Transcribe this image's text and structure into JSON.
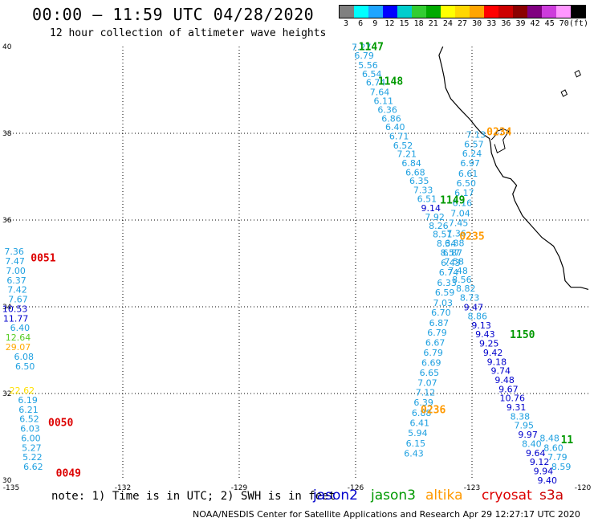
{
  "header": {
    "title": "00:00 – 11:59 UTC 04/28/2020",
    "subtitle": "12 hour collection of altimeter wave heights"
  },
  "scale": {
    "colors": [
      "#808080",
      "#00ffff",
      "#1ea5ff",
      "#0000ff",
      "#00cdcd",
      "#32cd32",
      "#00aa00",
      "#ffff00",
      "#ffd700",
      "#ffa500",
      "#ff0000",
      "#cd0000",
      "#8b0000",
      "#800080",
      "#cd3cdc",
      "#ff96ff",
      "#000000"
    ],
    "labels": [
      "3",
      "6",
      "9",
      "12",
      "15",
      "18",
      "21",
      "24",
      "27",
      "30",
      "33",
      "36",
      "39",
      "42",
      "45",
      "70",
      "(ft)"
    ]
  },
  "axes": {
    "lon_ticks": [
      "-135",
      "-132",
      "-129",
      "-126",
      "-123",
      "-120"
    ],
    "lat_ticks": [
      "40",
      "38",
      "36",
      "34",
      "32",
      "30"
    ],
    "lon_range": [
      -135,
      -120
    ],
    "lat_range": [
      30,
      40
    ]
  },
  "colors": {
    "jason2": "#0000cc",
    "jason3": "#009900",
    "altika": "#ff9900",
    "cryosat": "#dd0000",
    "s3a": "#cc0000"
  },
  "passes": [
    {
      "label": "1147",
      "color": "#009900",
      "lon": -125.6,
      "lat": 39.92
    },
    {
      "label": "1148",
      "color": "#009900",
      "lon": -125.1,
      "lat": 39.12
    },
    {
      "label": "0234",
      "color": "#ff9900",
      "lon": -122.3,
      "lat": 37.95
    },
    {
      "label": "1149",
      "color": "#009900",
      "lon": -123.5,
      "lat": 36.38
    },
    {
      "label": "0235",
      "color": "#ff9900",
      "lon": -123.0,
      "lat": 35.55
    },
    {
      "label": "0051",
      "color": "#dd0000",
      "lon": -134.05,
      "lat": 35.05
    },
    {
      "label": "1150",
      "color": "#009900",
      "lon": -121.7,
      "lat": 33.28
    },
    {
      "label": "0236",
      "color": "#ff9900",
      "lon": -124.0,
      "lat": 31.55
    },
    {
      "label": "0050",
      "color": "#dd0000",
      "lon": -133.6,
      "lat": 31.25
    },
    {
      "label": "0049",
      "color": "#dd0000",
      "lon": -133.4,
      "lat": 30.08
    },
    {
      "label": "11",
      "color": "#009900",
      "lon": -120.55,
      "lat": 30.85
    }
  ],
  "tracks": [
    {
      "name": "cryosat-west",
      "points": [
        {
          "lon": -134.8,
          "lat": 35.2,
          "v": "7.36",
          "c": "#1fa0e0"
        },
        {
          "lon": -134.78,
          "lat": 34.98,
          "v": "7.47",
          "c": "#1fa0e0"
        },
        {
          "lon": -134.76,
          "lat": 34.76,
          "v": "7.00",
          "c": "#1fa0e0"
        },
        {
          "lon": -134.74,
          "lat": 34.54,
          "v": "6.37",
          "c": "#1fa0e0"
        },
        {
          "lon": -134.72,
          "lat": 34.32,
          "v": "7.42",
          "c": "#1fa0e0"
        },
        {
          "lon": -134.7,
          "lat": 34.1,
          "v": "7.67",
          "c": "#1fa0e0"
        },
        {
          "lon": -134.78,
          "lat": 33.88,
          "v": "10.53",
          "c": "#0000cc"
        },
        {
          "lon": -134.76,
          "lat": 33.66,
          "v": "11.77",
          "c": "#0000cc"
        },
        {
          "lon": -134.65,
          "lat": 33.44,
          "v": "6.40",
          "c": "#1fa0e0"
        },
        {
          "lon": -134.7,
          "lat": 33.22,
          "v": "12.64",
          "c": "#55cc22"
        },
        {
          "lon": -134.7,
          "lat": 33.0,
          "v": "29.07",
          "c": "#ffaa00"
        },
        {
          "lon": -134.55,
          "lat": 32.78,
          "v": "6.08",
          "c": "#1fa0e0"
        },
        {
          "lon": -134.52,
          "lat": 32.56,
          "v": "6.50",
          "c": "#1fa0e0"
        },
        {
          "lon": -134.6,
          "lat": 32.0,
          "v": "22.62",
          "c": "#ffe000"
        },
        {
          "lon": -134.45,
          "lat": 31.78,
          "v": "6.19",
          "c": "#1fa0e0"
        },
        {
          "lon": -134.43,
          "lat": 31.56,
          "v": "6.21",
          "c": "#1fa0e0"
        },
        {
          "lon": -134.41,
          "lat": 31.34,
          "v": "6.52",
          "c": "#1fa0e0"
        },
        {
          "lon": -134.39,
          "lat": 31.12,
          "v": "6.03",
          "c": "#1fa0e0"
        },
        {
          "lon": -134.37,
          "lat": 30.9,
          "v": "6.00",
          "c": "#1fa0e0"
        },
        {
          "lon": -134.35,
          "lat": 30.68,
          "v": "5.27",
          "c": "#1fa0e0"
        },
        {
          "lon": -134.33,
          "lat": 30.46,
          "v": "5.22",
          "c": "#1fa0e0"
        },
        {
          "lon": -134.31,
          "lat": 30.24,
          "v": "6.62",
          "c": "#1fa0e0"
        }
      ]
    },
    {
      "name": "jason3-a",
      "points": [
        {
          "lon": -125.85,
          "lat": 39.92,
          "v": "7.27",
          "c": "#1fa0e0"
        },
        {
          "lon": -125.78,
          "lat": 39.72,
          "v": "6.79",
          "c": "#1fa0e0"
        },
        {
          "lon": -125.68,
          "lat": 39.5,
          "v": "5.56",
          "c": "#1fa0e0"
        },
        {
          "lon": -125.58,
          "lat": 39.3,
          "v": "6.54",
          "c": "#1fa0e0"
        },
        {
          "lon": -125.48,
          "lat": 39.1,
          "v": "6.74",
          "c": "#1fa0e0"
        },
        {
          "lon": -125.38,
          "lat": 38.88,
          "v": "7.64",
          "c": "#1fa0e0"
        },
        {
          "lon": -125.28,
          "lat": 38.68,
          "v": "6.11",
          "c": "#1fa0e0"
        },
        {
          "lon": -125.18,
          "lat": 38.47,
          "v": "6.36",
          "c": "#1fa0e0"
        },
        {
          "lon": -125.08,
          "lat": 38.27,
          "v": "6.86",
          "c": "#1fa0e0"
        },
        {
          "lon": -124.98,
          "lat": 38.07,
          "v": "6.40",
          "c": "#1fa0e0"
        },
        {
          "lon": -124.88,
          "lat": 37.86,
          "v": "6.71",
          "c": "#1fa0e0"
        },
        {
          "lon": -124.78,
          "lat": 37.65,
          "v": "6.52",
          "c": "#1fa0e0"
        },
        {
          "lon": -124.68,
          "lat": 37.45,
          "v": "7.21",
          "c": "#1fa0e0"
        },
        {
          "lon": -124.56,
          "lat": 37.24,
          "v": "6.84",
          "c": "#1fa0e0"
        },
        {
          "lon": -124.46,
          "lat": 37.03,
          "v": "6.68",
          "c": "#1fa0e0"
        },
        {
          "lon": -124.36,
          "lat": 36.83,
          "v": "6.35",
          "c": "#1fa0e0"
        },
        {
          "lon": -124.26,
          "lat": 36.62,
          "v": "7.33",
          "c": "#1fa0e0"
        },
        {
          "lon": -124.16,
          "lat": 36.42,
          "v": "6.51",
          "c": "#1fa0e0"
        },
        {
          "lon": -124.06,
          "lat": 36.2,
          "v": "9.14",
          "c": "#0000cc"
        },
        {
          "lon": -123.96,
          "lat": 36.0,
          "v": "7.92",
          "c": "#1fa0e0"
        },
        {
          "lon": -123.86,
          "lat": 35.8,
          "v": "8.26",
          "c": "#1fa0e0"
        },
        {
          "lon": -123.76,
          "lat": 35.6,
          "v": "8.51",
          "c": "#1fa0e0"
        },
        {
          "lon": -123.66,
          "lat": 35.39,
          "v": "8.34",
          "c": "#1fa0e0"
        },
        {
          "lon": -123.56,
          "lat": 35.18,
          "v": "8.57",
          "c": "#1fa0e0"
        },
        {
          "lon": -123.46,
          "lat": 34.97,
          "v": "7.58",
          "c": "#1fa0e0"
        },
        {
          "lon": -123.36,
          "lat": 34.76,
          "v": "7.48",
          "c": "#1fa0e0"
        },
        {
          "lon": -123.26,
          "lat": 34.56,
          "v": "8.56",
          "c": "#1fa0e0"
        },
        {
          "lon": -123.16,
          "lat": 34.35,
          "v": "8.82",
          "c": "#1fa0e0"
        },
        {
          "lon": -123.06,
          "lat": 34.14,
          "v": "8.73",
          "c": "#1fa0e0"
        },
        {
          "lon": -122.96,
          "lat": 33.92,
          "v": "9.47",
          "c": "#0000cc"
        },
        {
          "lon": -122.86,
          "lat": 33.71,
          "v": "8.86",
          "c": "#1fa0e0"
        },
        {
          "lon": -122.76,
          "lat": 33.5,
          "v": "9.13",
          "c": "#0000cc"
        },
        {
          "lon": -122.66,
          "lat": 33.3,
          "v": "9.43",
          "c": "#0000cc"
        },
        {
          "lon": -122.56,
          "lat": 33.08,
          "v": "9.25",
          "c": "#0000cc"
        },
        {
          "lon": -122.46,
          "lat": 32.87,
          "v": "9.42",
          "c": "#0000cc"
        },
        {
          "lon": -122.36,
          "lat": 32.66,
          "v": "9.18",
          "c": "#0000cc"
        },
        {
          "lon": -122.26,
          "lat": 32.45,
          "v": "9.74",
          "c": "#0000cc"
        },
        {
          "lon": -122.16,
          "lat": 32.24,
          "v": "9.48",
          "c": "#0000cc"
        },
        {
          "lon": -122.06,
          "lat": 32.03,
          "v": "9.67",
          "c": "#0000cc"
        },
        {
          "lon": -121.96,
          "lat": 31.82,
          "v": "10.76",
          "c": "#0000cc"
        },
        {
          "lon": -121.86,
          "lat": 31.61,
          "v": "9.31",
          "c": "#0000cc"
        },
        {
          "lon": -121.76,
          "lat": 31.4,
          "v": "8.38",
          "c": "#1fa0e0"
        },
        {
          "lon": -121.66,
          "lat": 31.19,
          "v": "7.95",
          "c": "#1fa0e0"
        },
        {
          "lon": -121.56,
          "lat": 30.98,
          "v": "9.97",
          "c": "#0000cc"
        },
        {
          "lon": -121.46,
          "lat": 30.77,
          "v": "8.40",
          "c": "#1fa0e0"
        },
        {
          "lon": -121.36,
          "lat": 30.56,
          "v": "9.64",
          "c": "#0000cc"
        },
        {
          "lon": -121.26,
          "lat": 30.35,
          "v": "9.12",
          "c": "#0000cc"
        },
        {
          "lon": -121.16,
          "lat": 30.14,
          "v": "9.94",
          "c": "#0000cc"
        },
        {
          "lon": -121.06,
          "lat": 29.93,
          "v": "9.40",
          "c": "#0000cc"
        }
      ]
    },
    {
      "name": "altika-a",
      "points": [
        {
          "lon": -122.9,
          "lat": 37.9,
          "v": "7.13",
          "c": "#1fa0e0"
        },
        {
          "lon": -122.95,
          "lat": 37.68,
          "v": "6.57",
          "c": "#1fa0e0"
        },
        {
          "lon": -123.0,
          "lat": 37.46,
          "v": "6.24",
          "c": "#1fa0e0"
        },
        {
          "lon": -123.05,
          "lat": 37.24,
          "v": "6.97",
          "c": "#1fa0e0"
        },
        {
          "lon": -123.1,
          "lat": 37.0,
          "v": "6.61",
          "c": "#1fa0e0"
        },
        {
          "lon": -123.15,
          "lat": 36.78,
          "v": "6.50",
          "c": "#1fa0e0"
        },
        {
          "lon": -123.2,
          "lat": 36.56,
          "v": "6.17",
          "c": "#1fa0e0"
        },
        {
          "lon": -123.25,
          "lat": 36.32,
          "v": "6.16",
          "c": "#1fa0e0"
        },
        {
          "lon": -123.3,
          "lat": 36.08,
          "v": "7.04",
          "c": "#1fa0e0"
        },
        {
          "lon": -123.35,
          "lat": 35.86,
          "v": "7.45",
          "c": "#1fa0e0"
        },
        {
          "lon": -123.4,
          "lat": 35.62,
          "v": "7.36",
          "c": "#1fa0e0"
        },
        {
          "lon": -123.45,
          "lat": 35.4,
          "v": "6.88",
          "c": "#1fa0e0"
        },
        {
          "lon": -123.5,
          "lat": 35.18,
          "v": "6.87",
          "c": "#1fa0e0"
        },
        {
          "lon": -123.55,
          "lat": 34.94,
          "v": "6.43",
          "c": "#1fa0e0"
        },
        {
          "lon": -123.6,
          "lat": 34.72,
          "v": "6.74",
          "c": "#1fa0e0"
        },
        {
          "lon": -123.65,
          "lat": 34.48,
          "v": "6.33",
          "c": "#1fa0e0"
        },
        {
          "lon": -123.7,
          "lat": 34.26,
          "v": "6.59",
          "c": "#1fa0e0"
        },
        {
          "lon": -123.75,
          "lat": 34.02,
          "v": "7.03",
          "c": "#1fa0e0"
        },
        {
          "lon": -123.8,
          "lat": 33.8,
          "v": "6.70",
          "c": "#1fa0e0"
        },
        {
          "lon": -123.85,
          "lat": 33.56,
          "v": "6.87",
          "c": "#1fa0e0"
        },
        {
          "lon": -123.9,
          "lat": 33.33,
          "v": "6.79",
          "c": "#1fa0e0"
        },
        {
          "lon": -123.95,
          "lat": 33.1,
          "v": "6.67",
          "c": "#1fa0e0"
        },
        {
          "lon": -124.0,
          "lat": 32.87,
          "v": "6.79",
          "c": "#1fa0e0"
        },
        {
          "lon": -124.05,
          "lat": 32.64,
          "v": "6.69",
          "c": "#1fa0e0"
        },
        {
          "lon": -124.1,
          "lat": 32.41,
          "v": "6.65",
          "c": "#1fa0e0"
        },
        {
          "lon": -124.15,
          "lat": 32.18,
          "v": "7.07",
          "c": "#1fa0e0"
        },
        {
          "lon": -124.2,
          "lat": 31.95,
          "v": "7.12",
          "c": "#1fa0e0"
        },
        {
          "lon": -124.25,
          "lat": 31.72,
          "v": "6.39",
          "c": "#1fa0e0"
        },
        {
          "lon": -124.3,
          "lat": 31.48,
          "v": "6.88",
          "c": "#1fa0e0"
        },
        {
          "lon": -124.35,
          "lat": 31.25,
          "v": "6.41",
          "c": "#1fa0e0"
        },
        {
          "lon": -124.4,
          "lat": 31.02,
          "v": "5.94",
          "c": "#1fa0e0"
        },
        {
          "lon": -124.45,
          "lat": 30.78,
          "v": "6.15",
          "c": "#1fa0e0"
        },
        {
          "lon": -124.5,
          "lat": 30.55,
          "v": "6.43",
          "c": "#1fa0e0"
        }
      ]
    },
    {
      "name": "jason3-b",
      "points": [
        {
          "lon": -121.0,
          "lat": 30.9,
          "v": "8.48",
          "c": "#1fa0e0"
        },
        {
          "lon": -120.9,
          "lat": 30.68,
          "v": "8.60",
          "c": "#1fa0e0"
        },
        {
          "lon": -120.8,
          "lat": 30.46,
          "v": "7.79",
          "c": "#1fa0e0"
        },
        {
          "lon": -120.7,
          "lat": 30.24,
          "v": "8.59",
          "c": "#1fa0e0"
        }
      ]
    }
  ],
  "footer": {
    "note": "note:  1) Time is in UTC;  2) SWH is in feet",
    "legend": [
      {
        "label": "jason2",
        "color": "#0000cc"
      },
      {
        "label": "jason3",
        "color": "#009900"
      },
      {
        "label": "altika",
        "color": "#ff9900"
      },
      {
        "label": "cryosat",
        "color": "#dd0000"
      },
      {
        "label": "s3a",
        "color": "#cc0000"
      }
    ],
    "credits": "NOAA/NESDIS Center for Satellite Applications and Research     Apr 29 12:27:17 UTC 2020"
  }
}
